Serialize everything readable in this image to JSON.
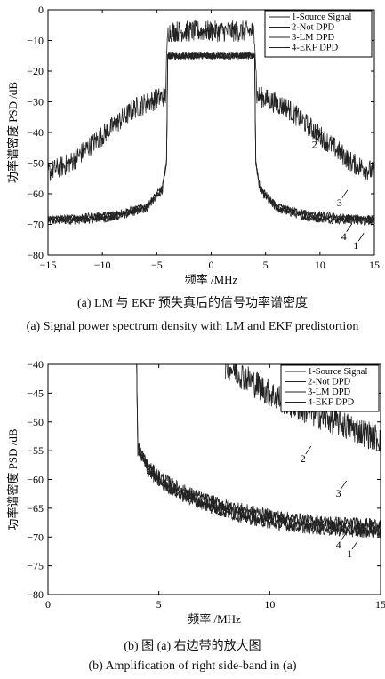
{
  "captions": {
    "a_cn": "(a) LM 与 EKF 预失真后的信号功率谱密度",
    "a_en": "(a) Signal power spectrum density with LM and EKF predistortion",
    "b_cn": "(b) 图 (a) 右边带的放大图",
    "b_en": "(b) Amplification of right side-band in (a)"
  },
  "chart_data": [
    {
      "type": "line",
      "xlabel": "频率 /MHz",
      "ylabel": "功率谱密度 PSD /dB",
      "xlim": [
        -15,
        15
      ],
      "ylim": [
        -80,
        0
      ],
      "xticks": [
        -15,
        -10,
        -5,
        0,
        5,
        10,
        15
      ],
      "yticks": [
        0,
        -10,
        -20,
        -30,
        -40,
        -50,
        -60,
        -70,
        -80
      ],
      "xtick_labels": [
        "−15",
        "−10",
        "−5",
        "0",
        "5",
        "10",
        "15"
      ],
      "ytick_labels": [
        "0",
        "−10",
        "−20",
        "−30",
        "−40",
        "−50",
        "−60",
        "−70",
        "−80"
      ],
      "legend_position": "top-right",
      "series": [
        {
          "name": "1-Source Signal",
          "x": [
            -15,
            -12,
            -9,
            -6,
            -4.5,
            -4.1,
            -4,
            -3.9,
            0,
            3.9,
            4,
            4.1,
            4.5,
            6,
            9,
            12,
            15
          ],
          "y": [
            -69,
            -68.8,
            -68,
            -65,
            -59,
            -50,
            -15,
            -15,
            -15,
            -15,
            -15,
            -50,
            -59,
            -65,
            -68,
            -68.8,
            -69
          ]
        },
        {
          "name": "2-Not DPD",
          "x": [
            -15,
            -13,
            -11,
            -9,
            -7,
            -5,
            -4.2,
            -4,
            -3.9,
            0,
            3.9,
            4,
            4.2,
            5,
            7,
            9,
            11,
            13,
            15
          ],
          "y": [
            -53,
            -50,
            -44,
            -38,
            -32,
            -29,
            -28,
            -8,
            -7,
            -7,
            -7,
            -8,
            -28,
            -29,
            -32,
            -38,
            -44,
            -50,
            -53
          ]
        },
        {
          "name": "3-LM DPD",
          "x": [
            -15,
            -12,
            -9,
            -6,
            -4.5,
            -4.1,
            -4,
            -3.9,
            0,
            3.9,
            4,
            4.1,
            4.5,
            6,
            9,
            12,
            15
          ],
          "y": [
            -68,
            -67.5,
            -66.5,
            -64,
            -58,
            -50,
            -15,
            -15,
            -15,
            -15,
            -15,
            -50,
            -58,
            -64,
            -66.5,
            -67.5,
            -68
          ]
        },
        {
          "name": "4-EKF DPD",
          "x": [
            -15,
            -12,
            -9,
            -6,
            -4.5,
            -4.1,
            -4,
            -3.9,
            0,
            3.9,
            4,
            4.1,
            4.5,
            6,
            9,
            12,
            15
          ],
          "y": [
            -68.5,
            -68.2,
            -67.3,
            -64.6,
            -58.6,
            -50,
            -15,
            -15,
            -15,
            -15,
            -15,
            -50,
            -58.6,
            -64.6,
            -67.3,
            -68.2,
            -68.5
          ]
        }
      ],
      "annotations": [
        {
          "text": "2",
          "x": 9.5,
          "y": -45
        },
        {
          "text": "3",
          "x": 11.8,
          "y": -64
        },
        {
          "text": "4",
          "x": 12.2,
          "y": -75
        },
        {
          "text": "1",
          "x": 13.3,
          "y": -78
        }
      ]
    },
    {
      "type": "line",
      "xlabel": "频率 /MHz",
      "ylabel": "功率谱密度 PSD /dB",
      "xlim": [
        0,
        15
      ],
      "ylim": [
        -80,
        -40
      ],
      "xticks": [
        0,
        5,
        10,
        15
      ],
      "yticks": [
        -40,
        -45,
        -50,
        -55,
        -60,
        -65,
        -70,
        -75,
        -80
      ],
      "xtick_labels": [
        "0",
        "5",
        "10",
        "15"
      ],
      "ytick_labels": [
        "−40",
        "−45",
        "−50",
        "−55",
        "−60",
        "−65",
        "−70",
        "−75",
        "−80"
      ],
      "legend_position": "top-right",
      "series": [
        {
          "name": "1-Source Signal",
          "x": [
            4,
            4.05,
            4.5,
            5,
            6,
            7,
            8,
            9,
            10,
            11,
            12,
            13,
            14,
            15
          ],
          "y": [
            -40,
            -55,
            -58.5,
            -60.5,
            -62.8,
            -64.5,
            -65.8,
            -66.8,
            -67.6,
            -68.2,
            -68.6,
            -68.9,
            -69.1,
            -69.2
          ]
        },
        {
          "name": "2-Not DPD",
          "x": [
            8,
            9,
            10,
            11,
            12,
            13,
            14,
            15
          ],
          "y": [
            -40,
            -42.5,
            -45,
            -47,
            -48.5,
            -50,
            -51.5,
            -53
          ]
        },
        {
          "name": "3-LM DPD",
          "x": [
            4,
            4.05,
            4.5,
            5,
            6,
            7,
            8,
            9,
            10,
            11,
            12,
            13,
            14,
            15
          ],
          "y": [
            -40,
            -54,
            -57.5,
            -59.3,
            -61.6,
            -63.2,
            -64.4,
            -65.3,
            -66.1,
            -66.7,
            -67.1,
            -67.4,
            -67.6,
            -67.8
          ]
        },
        {
          "name": "4-EKF DPD",
          "x": [
            4,
            4.05,
            4.5,
            5,
            6,
            7,
            8,
            9,
            10,
            11,
            12,
            13,
            14,
            15
          ],
          "y": [
            -40,
            -54.5,
            -58,
            -60,
            -62.3,
            -63.9,
            -65.2,
            -66.2,
            -67,
            -67.6,
            -68,
            -68.3,
            -68.5,
            -68.7
          ]
        }
      ],
      "annotations": [
        {
          "text": "2",
          "x": 11.5,
          "y": -57
        },
        {
          "text": "3",
          "x": 13.1,
          "y": -63
        },
        {
          "text": "4",
          "x": 13.1,
          "y": -72
        },
        {
          "text": "1",
          "x": 13.6,
          "y": -73.5
        }
      ]
    }
  ]
}
